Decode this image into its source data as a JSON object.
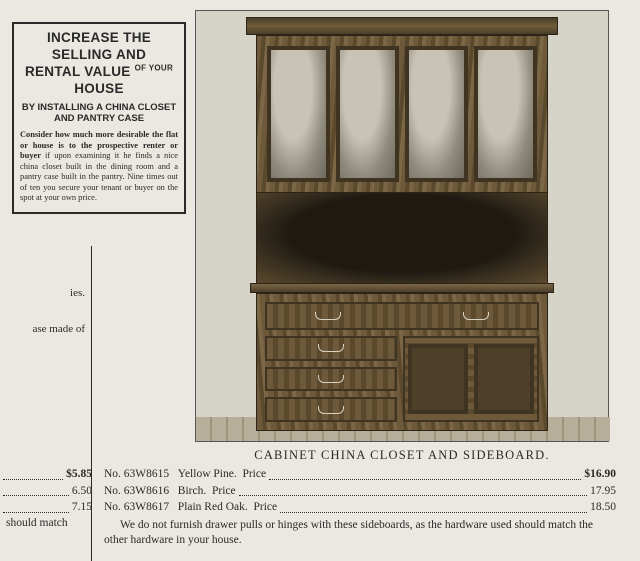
{
  "promo": {
    "title_line1": "INCREASE THE SELLING AND",
    "title_line2_a": "RENTAL VALUE",
    "title_line2_small": "OF YOUR",
    "title_line2_b": "HOUSE",
    "subtitle": "BY INSTALLING A CHINA CLOSET AND PANTRY CASE",
    "body_lead": "Consider how much more desirable the flat or house is to the prospective renter or buyer",
    "body_rest": " if upon examining it he finds a nice china closet built in the dining room and a pantry case built in the pantry. Nine times out of ten you secure your tenant or buyer on the spot at your own price."
  },
  "product": {
    "title": "CABINET CHINA CLOSET AND SIDEBOARD."
  },
  "left_fragments": {
    "f1": "ies.",
    "f2": "ase made of"
  },
  "left_prices": {
    "p1": "$5.85",
    "p2": "6.50",
    "p3": "7.15",
    "should": "should match"
  },
  "listings": [
    {
      "no": "No. 63W8615",
      "wood": "Yellow Pine.",
      "priceword": "Price",
      "price": "$16.90"
    },
    {
      "no": "No. 63W8616",
      "wood": "Birch.",
      "priceword": "Price",
      "price": "17.95"
    },
    {
      "no": "No. 63W8617",
      "wood": "Plain Red Oak.",
      "priceword": "Price",
      "price": "18.50"
    }
  ],
  "footnote": "We do not furnish drawer pulls or hinges with these sideboards, as the hardware used should match the other hardware in your house.",
  "colors": {
    "page_bg": "#eae8e0",
    "ink": "#2a2a2a"
  }
}
